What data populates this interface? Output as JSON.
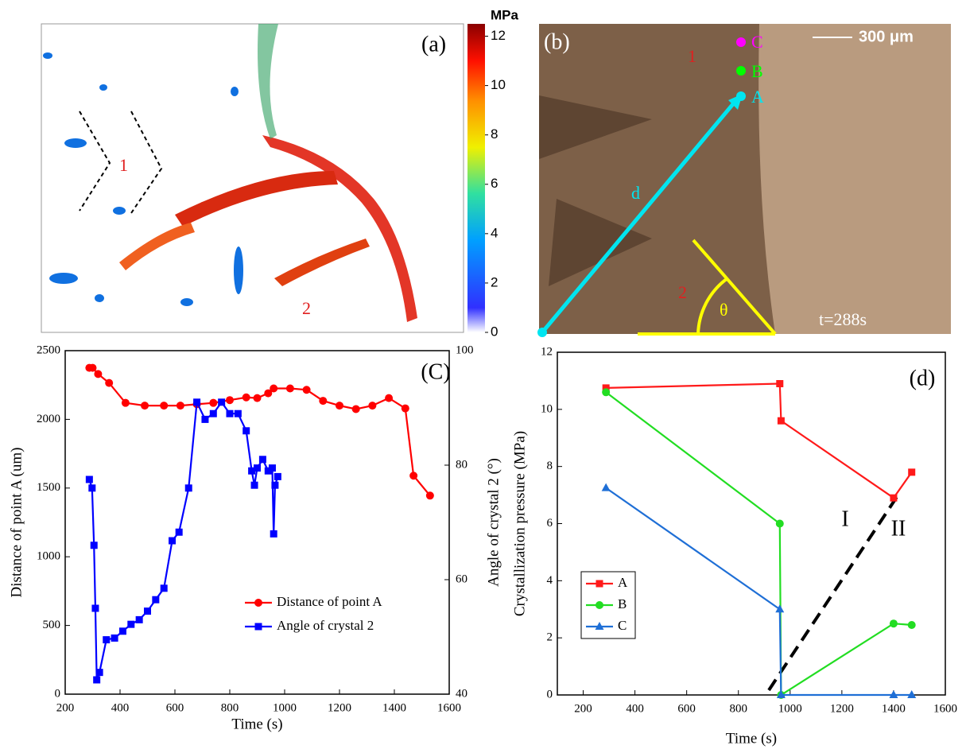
{
  "images": [
    {
      "label": "(a)",
      "annotations": [
        "1",
        "2"
      ],
      "colorbar": {
        "title": "MPa",
        "lim": [
          0,
          12.5
        ],
        "ticks": [
          0,
          2,
          4,
          6,
          8,
          10,
          12
        ]
      }
    },
    {
      "label": "(b)",
      "points": [
        "C",
        "B",
        "A"
      ],
      "annotations": [
        "1",
        "2",
        "d",
        "θ"
      ],
      "scale_bar": "300 μm",
      "time": "t=288s"
    }
  ],
  "chart_data": [
    {
      "type": "line",
      "panel_label": "(C)",
      "xlabel": "Time (s)",
      "ylabel": "Distance of point A (um)",
      "y2label": "Angle of crystal 2 (°)",
      "xlim": [
        200,
        1600
      ],
      "xticks": [
        200,
        400,
        600,
        800,
        1000,
        1200,
        1400,
        1600
      ],
      "ylim": [
        0,
        2500
      ],
      "yticks": [
        0,
        500,
        1000,
        1500,
        2000,
        2500
      ],
      "y2lim": [
        40,
        100
      ],
      "y2ticks": [
        40,
        60,
        80,
        100
      ],
      "legend": "lower center",
      "series": [
        {
          "name": "Distance of point A",
          "color": "#ff0000",
          "marker": "circle",
          "x": [
            288,
            300,
            320,
            360,
            420,
            490,
            560,
            620,
            680,
            740,
            800,
            860,
            900,
            940,
            960,
            1020,
            1080,
            1140,
            1200,
            1260,
            1320,
            1380,
            1440,
            1470,
            1530
          ],
          "values": [
            2375,
            2375,
            2330,
            2265,
            2120,
            2100,
            2100,
            2100,
            2110,
            2120,
            2140,
            2160,
            2155,
            2190,
            2225,
            2225,
            2215,
            2135,
            2100,
            2075,
            2100,
            2155,
            2080,
            1590,
            1445
          ]
        },
        {
          "name": "Angle of crystal 2",
          "color": "#0000ff",
          "marker": "square",
          "axis": "y2",
          "x": [
            288,
            298,
            305,
            310,
            315,
            325,
            350,
            380,
            410,
            440,
            470,
            500,
            530,
            560,
            590,
            615,
            650,
            680,
            710,
            740,
            770,
            800,
            830,
            860,
            880,
            890,
            900,
            920,
            940,
            955,
            960,
            965,
            975
          ],
          "values": [
            77.5,
            76,
            66,
            55,
            42.5,
            43.8,
            49.5,
            49.8,
            51,
            52.2,
            53,
            54.5,
            56.5,
            58.5,
            66.8,
            68.3,
            76,
            91,
            88,
            89,
            91,
            89,
            89,
            86,
            79,
            76.5,
            79.5,
            81,
            79,
            79.5,
            68,
            76.5,
            78
          ]
        }
      ]
    },
    {
      "type": "line",
      "panel_label": "(d)",
      "xlabel": "Time (s)",
      "ylabel": "Crystallization pressure (MPa)",
      "xlim": [
        100,
        1600
      ],
      "xticks": [
        200,
        400,
        600,
        800,
        1000,
        1200,
        1400,
        1600
      ],
      "ylim": [
        0,
        12
      ],
      "yticks": [
        0,
        2,
        4,
        6,
        8,
        10,
        12
      ],
      "legend": "lower left",
      "annotations": [
        "I",
        "II"
      ],
      "series": [
        {
          "name": "A",
          "color": "#ff1a1a",
          "marker": "square",
          "x": [
            288,
            960,
            965,
            1400,
            1470
          ],
          "values": [
            10.75,
            10.9,
            9.6,
            6.9,
            7.8
          ]
        },
        {
          "name": "B",
          "color": "#22dd22",
          "marker": "circle",
          "x": [
            288,
            960,
            965,
            1400,
            1470
          ],
          "values": [
            10.6,
            6.0,
            0,
            2.5,
            2.45
          ]
        },
        {
          "name": "C",
          "color": "#1f6fd6",
          "marker": "triangle",
          "x": [
            288,
            960,
            965,
            1400,
            1470
          ],
          "values": [
            7.25,
            3.0,
            0,
            0,
            0
          ]
        }
      ]
    }
  ]
}
